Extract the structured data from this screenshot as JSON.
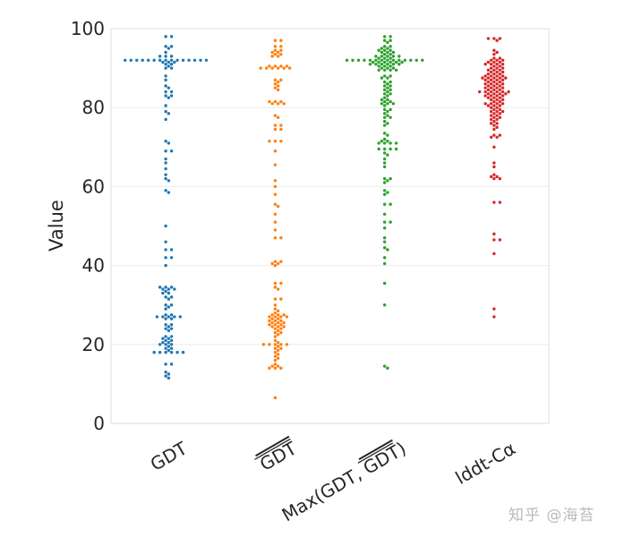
{
  "chart_data": {
    "type": "swarm",
    "title": "",
    "xlabel": "",
    "ylabel": "Value",
    "ylim": [
      0,
      100
    ],
    "yticks": [
      0,
      20,
      40,
      60,
      80,
      100
    ],
    "grid": true,
    "legend": null,
    "categories": [
      "GDT",
      "GDT̅ (overline)",
      "Max(GDT, GDT̅)",
      "lddt-Cα"
    ],
    "tick_labels": [
      {
        "text": "GDT",
        "overline": false
      },
      {
        "text": "GDT",
        "overline": true
      },
      {
        "prefix": "Max(GDT, ",
        "over": "GDT",
        "suffix": ")"
      },
      {
        "text": "lddt-Cα",
        "overline": false
      }
    ],
    "colors": [
      "#1f77b4",
      "#ff7f0e",
      "#2ca02c",
      "#d62728"
    ],
    "series": [
      {
        "name": "GDT",
        "values": [
          98,
          98,
          95.5,
          95.5,
          95,
          94,
          93,
          93,
          93,
          92,
          92,
          92,
          92,
          92,
          92,
          92,
          92,
          92,
          92,
          92,
          92,
          92,
          92,
          92,
          91.5,
          91.5,
          91.5,
          91,
          91,
          90.5,
          90,
          90,
          88,
          87,
          85.5,
          85,
          84,
          84,
          83,
          83,
          82.5,
          80.5,
          79,
          78.5,
          77,
          71.5,
          71,
          69,
          69,
          67,
          66,
          64.5,
          63,
          62,
          61.5,
          59,
          58.5,
          50,
          46,
          44,
          44,
          42,
          42,
          40,
          34.5,
          34.5,
          34.5,
          34,
          34,
          34,
          33.5,
          33,
          33,
          32,
          32,
          31.5,
          30,
          30,
          29.5,
          29,
          27.5,
          27.5,
          27,
          27,
          27,
          27,
          27,
          26.5,
          26.5,
          25,
          25,
          24.5,
          24,
          24,
          23.5,
          22,
          22,
          21.5,
          21.5,
          21,
          21,
          20.5,
          20.5,
          20,
          20,
          20,
          19.5,
          19,
          19,
          18.5,
          18,
          18,
          18,
          18,
          18,
          18,
          15,
          15,
          13,
          12.5,
          12,
          11.5
        ]
      },
      {
        "name": "GDT_bar",
        "values": [
          97,
          97,
          95.5,
          95.5,
          94.5,
          94.5,
          94,
          94,
          93.5,
          93.5,
          93,
          93,
          90.5,
          90.5,
          90.5,
          90.5,
          90,
          90,
          90,
          90,
          90,
          90,
          87,
          87,
          86.5,
          86,
          85.5,
          85,
          84.5,
          81.5,
          81.5,
          81.5,
          81,
          81,
          81,
          78,
          77.5,
          75.5,
          75.5,
          74.5,
          74.5,
          71.5,
          71.5,
          71.5,
          69,
          65.5,
          61.5,
          60,
          58,
          55.5,
          55,
          53,
          51,
          49,
          47,
          47,
          41,
          41,
          40.5,
          40.5,
          40,
          35.5,
          35.5,
          34.5,
          34,
          31.5,
          31.5,
          30,
          29,
          28.5,
          28,
          27.5,
          27.5,
          27.5,
          27,
          27,
          27,
          27,
          26.5,
          26.5,
          26,
          26,
          26,
          25.5,
          25.5,
          25.5,
          25,
          25,
          25,
          24.5,
          24.5,
          24.5,
          24,
          24,
          23.5,
          23,
          23,
          22.5,
          22,
          21,
          20.5,
          20,
          20,
          20,
          20,
          20,
          19.5,
          19,
          19,
          18.5,
          18,
          17.5,
          17,
          16.5,
          16,
          15,
          14.5,
          14.5,
          14,
          14,
          14,
          6.5
        ]
      },
      {
        "name": "Max",
        "values": [
          98,
          98,
          97,
          97,
          96.5,
          95.5,
          95.5,
          95,
          95,
          94.5,
          94.5,
          94.5,
          94,
          94,
          94,
          93.5,
          93.5,
          93,
          93,
          93,
          93,
          93,
          92.5,
          92.5,
          92.5,
          92,
          92,
          92,
          92,
          92,
          92,
          92,
          92,
          92,
          92,
          92,
          92,
          92,
          92,
          91.5,
          91.5,
          91.5,
          91.5,
          91.5,
          91.5,
          91,
          91,
          91,
          91,
          91,
          91,
          90.5,
          90.5,
          90.5,
          90,
          90,
          90,
          89.5,
          89.5,
          89.5,
          89.5,
          88,
          88,
          87.5,
          87.5,
          86.5,
          86.5,
          86,
          85.5,
          85.5,
          85,
          84.5,
          84.5,
          84,
          83.5,
          83.5,
          83,
          82.5,
          82,
          82,
          81.5,
          81.5,
          81,
          81,
          81,
          80.5,
          79.5,
          79.5,
          79,
          78.5,
          78,
          77.5,
          77.5,
          76.5,
          76,
          75.5,
          73.5,
          73,
          72,
          71.5,
          71.5,
          71,
          71,
          71,
          71,
          69.5,
          69.5,
          69.5,
          69.5,
          68.5,
          68,
          67,
          66,
          65,
          62,
          62,
          61.5,
          61,
          59,
          58.5,
          58,
          55.5,
          55.5,
          53,
          51,
          51,
          49.5,
          47,
          46,
          44.5,
          44,
          42,
          40.5,
          35.5,
          30,
          14.5,
          14
        ]
      },
      {
        "name": "lddt",
        "values": [
          97.5,
          97.5,
          97.5,
          97,
          94.5,
          94,
          93.5,
          92.5,
          92.5,
          92,
          92,
          92,
          91.5,
          91.5,
          91.5,
          91,
          91,
          91,
          91,
          90.5,
          90.5,
          90,
          90,
          90,
          89.5,
          89.5,
          89.5,
          89,
          89,
          89,
          88.5,
          88.5,
          88.5,
          88,
          88,
          88,
          88,
          87.5,
          87.5,
          87.5,
          87.5,
          87.5,
          87,
          87,
          87,
          87,
          86.5,
          86.5,
          86.5,
          86,
          86,
          86,
          86,
          85.5,
          85.5,
          85.5,
          85,
          85,
          85,
          85,
          84.5,
          84.5,
          84.5,
          84,
          84,
          84,
          84,
          84,
          84,
          83.5,
          83.5,
          83.5,
          83.5,
          83,
          83,
          83,
          83,
          82.5,
          82.5,
          82.5,
          82,
          82,
          82,
          81.5,
          81.5,
          81,
          81,
          81,
          81,
          80.5,
          80.5,
          80.5,
          80,
          80,
          79.5,
          79.5,
          79,
          79,
          79,
          78.5,
          78.5,
          78,
          78,
          77.5,
          77.5,
          77,
          77,
          76.5,
          76,
          76,
          75.5,
          75,
          74.5,
          73,
          73,
          72.5,
          72.5,
          70,
          66,
          65,
          63,
          62.5,
          62.5,
          62,
          62,
          56,
          56,
          48,
          46.5,
          46.5,
          43,
          29,
          27
        ]
      }
    ]
  },
  "watermark": "知乎 @海苔"
}
